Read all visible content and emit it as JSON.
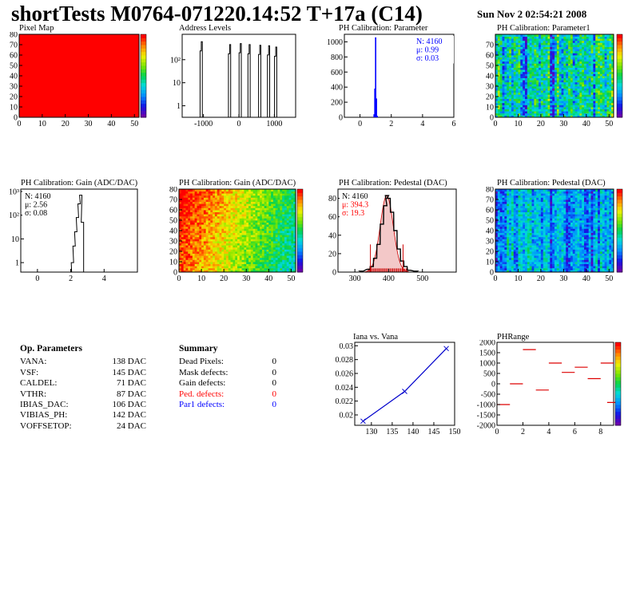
{
  "header": {
    "title": "shortTests M0764-071220.14:52 T+17a (C14)",
    "date": "Sun Nov  2 02:54:21 2008"
  },
  "panels": {
    "pixel_map": {
      "title": "Pixel Map",
      "xticks": [
        "0",
        "10",
        "20",
        "30",
        "40",
        "50"
      ],
      "yticks": [
        "0",
        "10",
        "20",
        "30",
        "40",
        "50",
        "60",
        "70",
        "80"
      ]
    },
    "address_levels": {
      "title": "Address Levels",
      "xticks": [
        "-1000",
        "0",
        "1000"
      ],
      "yticks": [
        "1",
        "10",
        "10²"
      ]
    },
    "ph_param": {
      "title": "PH Calibration: Parameter",
      "xticks": [
        "0",
        "2",
        "4",
        "6"
      ],
      "yticks": [
        "0",
        "200",
        "400",
        "600",
        "800",
        "1000"
      ],
      "stats": [
        "N: 4160",
        "μ: 0.99",
        "σ: 0.03"
      ]
    },
    "ph_param1": {
      "title": "PH Calibration: Parameter1",
      "xticks": [
        "0",
        "10",
        "20",
        "30",
        "40",
        "50"
      ],
      "yticks": [
        "0",
        "10",
        "20",
        "30",
        "40",
        "50",
        "60",
        "70"
      ]
    },
    "gain_hist": {
      "title": "PH Calibration: Gain (ADC/DAC)",
      "xticks": [
        "0",
        "2",
        "4"
      ],
      "yticks": [
        "1",
        "10",
        "10²",
        "10³"
      ],
      "stats": [
        "N: 4160",
        "μ: 2.56",
        "σ: 0.08"
      ]
    },
    "gain_map": {
      "title": "PH Calibration: Gain (ADC/DAC)",
      "xticks": [
        "0",
        "10",
        "20",
        "30",
        "40",
        "50"
      ],
      "yticks": [
        "0",
        "10",
        "20",
        "30",
        "40",
        "50",
        "60",
        "70",
        "80"
      ]
    },
    "ped_hist": {
      "title": "PH Calibration: Pedestal (DAC)",
      "xticks": [
        "300",
        "400",
        "500"
      ],
      "yticks": [
        "0",
        "20",
        "40",
        "60",
        "80"
      ],
      "stats": [
        "N: 4160",
        "μ: 394.3",
        "σ: 19.3"
      ]
    },
    "ped_map": {
      "title": "PH Calibration: Pedestal (DAC)",
      "xticks": [
        "0",
        "10",
        "20",
        "30",
        "40",
        "50"
      ],
      "yticks": [
        "0",
        "10",
        "20",
        "30",
        "40",
        "50",
        "60",
        "70",
        "80"
      ]
    },
    "iana": {
      "title": "Iana vs. Vana",
      "xticks": [
        "130",
        "135",
        "140",
        "145",
        "150"
      ],
      "yticks": [
        "0.02",
        "0.022",
        "0.024",
        "0.026",
        "0.028",
        "0.03"
      ]
    },
    "phrange": {
      "title": "PHRange",
      "xticks": [
        "0",
        "2",
        "4",
        "6",
        "8"
      ],
      "yticks": [
        "-2000",
        "-1500",
        "-1000",
        "-500",
        "0",
        "500",
        "1000",
        "1500",
        "2000"
      ]
    }
  },
  "op_params": {
    "heading": "Op. Parameters",
    "rows": [
      {
        "name": "VANA:",
        "value": "138 DAC"
      },
      {
        "name": "VSF:",
        "value": "145 DAC"
      },
      {
        "name": "CALDEL:",
        "value": "71 DAC"
      },
      {
        "name": "VTHR:",
        "value": "87 DAC"
      },
      {
        "name": "IBIAS_DAC:",
        "value": "106 DAC"
      },
      {
        "name": "VIBIAS_PH:",
        "value": "142 DAC"
      },
      {
        "name": "VOFFSETOP:",
        "value": "24 DAC"
      }
    ]
  },
  "summary": {
    "heading": "Summary",
    "rows": [
      {
        "name": "Dead Pixels:",
        "value": "0",
        "color": "#000000"
      },
      {
        "name": "Mask defects:",
        "value": "0",
        "color": "#000000"
      },
      {
        "name": "Gain defects:",
        "value": "0",
        "color": "#000000"
      },
      {
        "name": "Ped. defects:",
        "value": "0",
        "color": "#ff0000"
      },
      {
        "name": "Par1 defects:",
        "value": "0",
        "color": "#0000ff"
      }
    ]
  },
  "chart_data": [
    {
      "id": "pixel_map",
      "type": "heatmap",
      "title": "Pixel Map",
      "xlim": [
        0,
        52
      ],
      "ylim": [
        0,
        80
      ],
      "fill_value": 10,
      "zlim": [
        0,
        10
      ]
    },
    {
      "id": "address_levels",
      "type": "bar",
      "title": "Address Levels",
      "xlim": [
        -1600,
        1600
      ],
      "log_y": true,
      "peaks": [
        {
          "x": -1050,
          "y": 600
        },
        {
          "x": -250,
          "y": 450
        },
        {
          "x": 50,
          "y": 500
        },
        {
          "x": 300,
          "y": 450
        },
        {
          "x": 600,
          "y": 420
        },
        {
          "x": 850,
          "y": 400
        },
        {
          "x": 1050,
          "y": 350
        }
      ]
    },
    {
      "id": "ph_param",
      "type": "bar",
      "title": "PH Calibration: Parameter",
      "xlim": [
        -1,
        6
      ],
      "ylim": [
        0,
        1100
      ],
      "x": [
        0.9,
        0.95,
        1.0,
        1.05,
        1.1
      ],
      "values": [
        40,
        380,
        1060,
        250,
        20
      ]
    },
    {
      "id": "ph_param1",
      "type": "heatmap",
      "title": "PH Calibration: Parameter1",
      "xlim": [
        0,
        52
      ],
      "ylim": [
        0,
        80
      ],
      "zlim": [
        0,
        1
      ]
    },
    {
      "id": "gain_hist",
      "type": "bar",
      "title": "PH Calibration: Gain (ADC/DAC)",
      "xlim": [
        -1,
        6
      ],
      "log_y": true,
      "x": [
        2.1,
        2.2,
        2.3,
        2.4,
        2.5,
        2.6,
        2.7
      ],
      "values": [
        1,
        5,
        20,
        80,
        300,
        700,
        50
      ]
    },
    {
      "id": "gain_map",
      "type": "heatmap",
      "title": "PH Calibration: Gain (ADC/DAC)",
      "xlim": [
        0,
        52
      ],
      "ylim": [
        0,
        80
      ],
      "zlim": [
        2.1,
        2.7
      ]
    },
    {
      "id": "ped_hist",
      "type": "bar",
      "title": "PH Calibration: Pedestal (DAC)",
      "xlim": [
        250,
        600
      ],
      "ylim": [
        0,
        90
      ],
      "x": [
        320,
        340,
        350,
        360,
        370,
        380,
        390,
        395,
        400,
        410,
        420,
        430,
        440,
        450,
        460,
        480
      ],
      "values": [
        1,
        3,
        6,
        15,
        30,
        52,
        72,
        83,
        80,
        65,
        45,
        25,
        12,
        6,
        2,
        1
      ],
      "stats_mean": 394.3,
      "stats_sigma": 19.3
    },
    {
      "id": "ped_map",
      "type": "heatmap",
      "title": "PH Calibration: Pedestal (DAC)",
      "xlim": [
        0,
        52
      ],
      "ylim": [
        0,
        80
      ],
      "zlim": [
        340,
        500
      ]
    },
    {
      "id": "iana",
      "type": "line",
      "title": "Iana vs. Vana",
      "x": [
        128,
        138,
        148
      ],
      "values": [
        0.0191,
        0.0234,
        0.0296
      ],
      "xlim": [
        126,
        150
      ],
      "ylim": [
        0.0185,
        0.0305
      ]
    },
    {
      "id": "phrange",
      "type": "scatter",
      "title": "PHRange",
      "xlim": [
        0,
        9
      ],
      "ylim": [
        -2000,
        2000
      ],
      "segments": [
        {
          "x": 0,
          "y": -1000
        },
        {
          "x": 1,
          "y": 0
        },
        {
          "x": 2,
          "y": 1650
        },
        {
          "x": 3,
          "y": -300
        },
        {
          "x": 4,
          "y": 1000
        },
        {
          "x": 5,
          "y": 550
        },
        {
          "x": 6,
          "y": 800
        },
        {
          "x": 7,
          "y": 250
        },
        {
          "x": 8,
          "y": 1000
        },
        {
          "x": 8.5,
          "y": -900
        }
      ]
    }
  ]
}
